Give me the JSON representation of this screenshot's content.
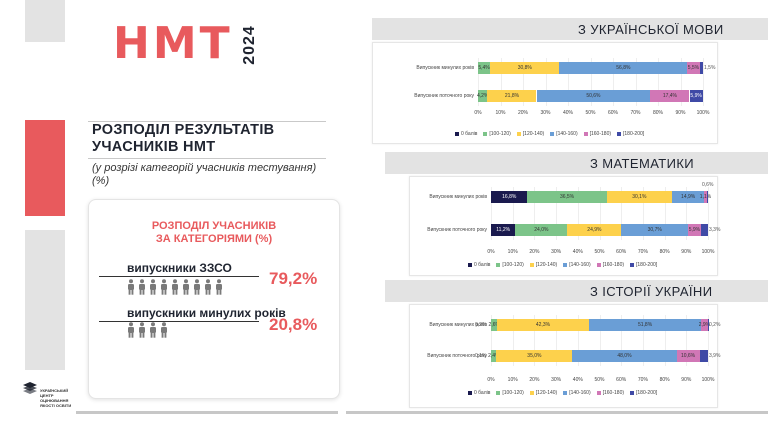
{
  "colors": {
    "accent": "#e85a5d",
    "stripe_gray": "#e3e3e3",
    "dark_text": "#1f2430",
    "seg_0": "#1a1a4e",
    "seg_100_120": "#7cc489",
    "seg_120_140": "#fdd14c",
    "seg_140_160": "#6a9ed6",
    "seg_160_180": "#d177b6",
    "seg_180_200": "#3f4aa6"
  },
  "title": {
    "nmt": "НМТ",
    "year": "2024"
  },
  "heading": {
    "line1": "РОЗПОДІЛ РЕЗУЛЬТАТІВ",
    "line2": "УЧАСНИКІВ НМТ"
  },
  "subtitle": "(у розрізі категорій учасників тестування) (%)",
  "card": {
    "title_line1": "РОЗПОДІЛ УЧАСНИКІВ",
    "title_line2": "ЗА КАТЕГОРІЯМИ (%)",
    "categories": [
      {
        "label": "випускники ЗЗСО",
        "value": "79,2%",
        "icons": 9
      },
      {
        "label": "випускники минулих років",
        "value": "20,8%",
        "icons": 4
      }
    ]
  },
  "logo": {
    "text": "УКРАЇНСЬКИЙ ЦЕНТР ОЦІНЮВАННЯ ЯКОСТІ ОСВІТИ",
    "icon": "ucequa-logo-icon"
  },
  "legend_labels": [
    "0 балів",
    "[100-120)",
    "[120-140)",
    "[140-160)",
    "[160-180)",
    "[180-200]"
  ],
  "x_ticks": [
    "0%",
    "10%",
    "20%",
    "30%",
    "40%",
    "50%",
    "60%",
    "70%",
    "80%",
    "90%",
    "100%"
  ],
  "chart_data": [
    {
      "type": "bar",
      "title": "З УКРАЇНСЬКОЇ МОВИ",
      "stacked": true,
      "orientation": "horizontal",
      "xlim": [
        0,
        100
      ],
      "categories": [
        "Випускник минулих років",
        "Випускник поточного року"
      ],
      "series": [
        {
          "name": "0 балів",
          "values": [
            0.0,
            0.0
          ]
        },
        {
          "name": "[100-120)",
          "values": [
            5.4,
            4.2
          ]
        },
        {
          "name": "[120-140)",
          "values": [
            30.8,
            21.8
          ]
        },
        {
          "name": "[140-160)",
          "values": [
            56.8,
            50.6
          ]
        },
        {
          "name": "[160-180)",
          "values": [
            5.5,
            17.4
          ]
        },
        {
          "name": "[180-200]",
          "values": [
            1.5,
            5.9
          ]
        }
      ],
      "labels": [
        [
          "",
          "5,4%",
          "30,8%",
          "56,8%",
          "5,5%",
          "1,5%"
        ],
        [
          "",
          "4,2%",
          "21,8%",
          "50,6%",
          "17,4%",
          "5,9%"
        ]
      ]
    },
    {
      "type": "bar",
      "title": "З МАТЕМАТИКИ",
      "stacked": true,
      "orientation": "horizontal",
      "xlim": [
        0,
        100
      ],
      "categories": [
        "Випускник минулих років",
        "Випускник поточного року"
      ],
      "series": [
        {
          "name": "0 балів",
          "values": [
            16.8,
            11.2
          ]
        },
        {
          "name": "[100-120)",
          "values": [
            36.5,
            24.0
          ]
        },
        {
          "name": "[120-140)",
          "values": [
            30.1,
            24.9
          ]
        },
        {
          "name": "[140-160)",
          "values": [
            14.9,
            30.7
          ]
        },
        {
          "name": "[160-180)",
          "values": [
            1.1,
            5.9
          ]
        },
        {
          "name": "[180-200]",
          "values": [
            0.6,
            3.3
          ]
        }
      ],
      "labels": [
        [
          "16,8%",
          "36,5%",
          "30,1%",
          "14,9%",
          "1,1%",
          "0,6%"
        ],
        [
          "11,2%",
          "24,0%",
          "24,9%",
          "30,7%",
          "5,9%",
          "3,3%"
        ]
      ]
    },
    {
      "type": "bar",
      "title": "З ІСТОРІЇ УКРАЇНИ",
      "stacked": true,
      "orientation": "horizontal",
      "xlim": [
        0,
        100
      ],
      "categories": [
        "Випускник минулих років",
        "Випускник поточного року"
      ],
      "series": [
        {
          "name": "0 балів",
          "values": [
            0.2,
            0.1
          ]
        },
        {
          "name": "[100-120)",
          "values": [
            2.6,
            2.4
          ]
        },
        {
          "name": "[120-140)",
          "values": [
            42.3,
            35.0
          ]
        },
        {
          "name": "[140-160)",
          "values": [
            51.8,
            48.0
          ]
        },
        {
          "name": "[160-180)",
          "values": [
            2.9,
            10.6
          ]
        },
        {
          "name": "[180-200]",
          "values": [
            0.2,
            3.9
          ]
        }
      ],
      "labels": [
        [
          "0,2%",
          "2,6%",
          "42,3%",
          "51,8%",
          "2,9%",
          "0,2%"
        ],
        [
          "0,1%",
          "2,4%",
          "35,0%",
          "48,0%",
          "10,6%",
          "3,9%"
        ]
      ]
    }
  ]
}
